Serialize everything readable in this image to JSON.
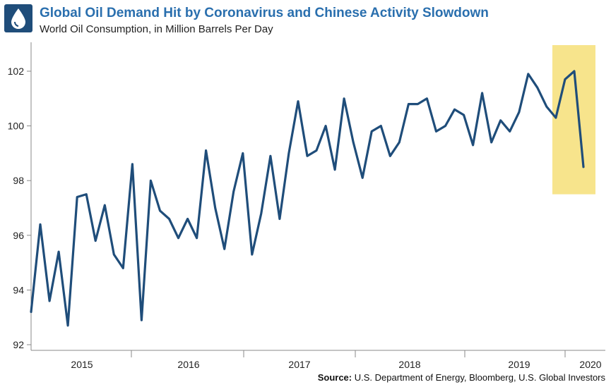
{
  "title": "Global Oil Demand Hit by Coronavirus and Chinese Activity Slowdown",
  "subtitle": "World Oil Consumption, in Million Barrels Per Day",
  "source_label": "Source:",
  "source_text": "U.S. Department of Energy, Bloomberg, U.S. Global Investors",
  "logo_icon": "oil-drop-icon",
  "colors": {
    "line": "#1f4d7a",
    "highlight": "#f7e48c",
    "title": "#2a6fae"
  },
  "chart_data": {
    "type": "line",
    "title": "Global Oil Demand Hit by Coronavirus and Chinese Activity Slowdown",
    "subtitle": "World Oil Consumption, in Million Barrels Per Day",
    "xlabel": "",
    "ylabel": "",
    "ylim": [
      92,
      103
    ],
    "yticks": [
      92,
      94,
      96,
      98,
      100,
      102
    ],
    "x_tick_labels": [
      "2015",
      "2016",
      "2017",
      "2018",
      "2019",
      "2020"
    ],
    "grid": false,
    "x_start": "2014-Q1",
    "frequency": "monthly (quarterly seasonal pattern)",
    "highlight_range": {
      "from_index": 57,
      "to_index": 63,
      "ymin": 97.5,
      "ymax": 103
    },
    "series": [
      {
        "values": [
          93.2,
          96.4,
          93.6,
          95.4,
          92.7,
          97.4,
          97.5,
          95.8,
          97.1,
          95.3,
          94.8,
          98.6,
          92.9,
          98.0,
          96.9,
          96.6,
          95.9,
          96.6,
          95.9,
          99.1,
          97.0,
          95.5,
          97.6,
          99.0,
          95.3,
          96.8,
          98.9,
          96.6,
          99.0,
          100.9,
          98.9,
          99.1,
          100.0,
          98.4,
          101.0,
          99.4,
          98.1,
          99.8,
          100.0,
          98.9,
          99.4,
          100.8,
          100.8,
          101.0,
          99.8,
          100.0,
          100.6,
          100.4,
          99.3,
          101.2,
          99.4,
          100.2,
          99.8,
          100.5,
          101.9,
          101.4,
          100.7,
          100.3,
          101.7,
          102.0,
          98.5
        ]
      }
    ]
  }
}
